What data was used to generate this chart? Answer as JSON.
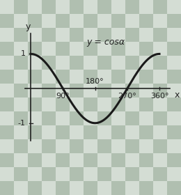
{
  "title": "y = cosα",
  "checker_color1": "#b0bfb0",
  "checker_color2": "#d4ddd4",
  "checker_size": 20,
  "axis_color": "#222222",
  "curve_color": "#1a1a1a",
  "curve_linewidth": 2.2,
  "x_ticks_deg": [
    90,
    180,
    270,
    360
  ],
  "x_tick_labels": [
    "90°",
    "180°",
    "270°",
    "360°"
  ],
  "y_tick_labels": [
    "1",
    "-1"
  ],
  "xlabel": "x",
  "ylabel": "y",
  "title_fontsize": 9,
  "tick_fontsize": 8,
  "axis_label_fontsize": 9
}
